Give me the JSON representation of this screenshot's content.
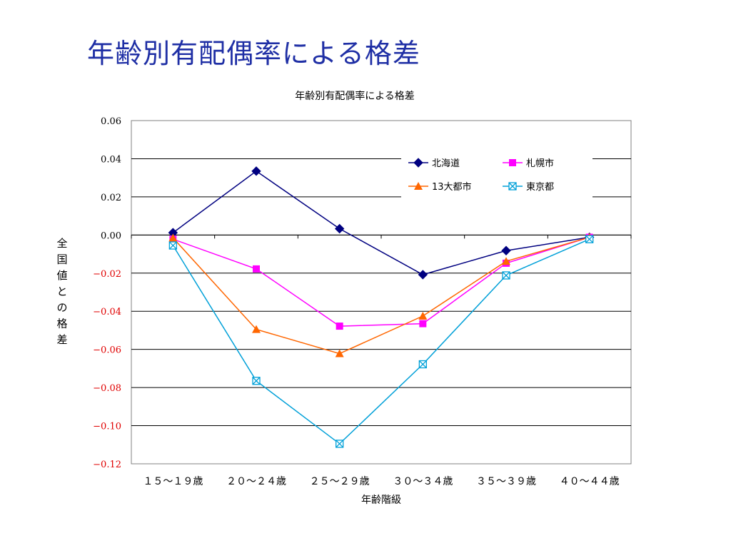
{
  "slide": {
    "title": "年齢別有配偶率による格差"
  },
  "chart_data": {
    "type": "line",
    "title": "年齢別有配偶率による格差",
    "xlabel": "年齢階級",
    "ylabel": "全国値との格差",
    "categories": [
      "１５～１９歳",
      "２０～２４歳",
      "２５～２９歳",
      "３０～３４歳",
      "３５～３９歳",
      "４０～４４歳"
    ],
    "ylim": [
      -0.12,
      0.06
    ],
    "yticks": [
      0.06,
      0.04,
      0.02,
      0.0,
      -0.02,
      -0.04,
      -0.06,
      -0.08,
      -0.1,
      -0.12
    ],
    "ytick_labels": [
      "0.06",
      "0.04",
      "0.02",
      "0.00",
      "−0.02",
      "−0.04",
      "−0.06",
      "−0.08",
      "−0.10",
      "−0.12"
    ],
    "negative_tick_color": "#e00000",
    "grid": true,
    "legend_position": "top-right",
    "series": [
      {
        "name": "北海道",
        "color": "#000080",
        "marker": "diamond",
        "values": [
          0.0012,
          0.0335,
          0.0033,
          -0.0208,
          -0.0082,
          -0.0012
        ]
      },
      {
        "name": "札幌市",
        "color": "#ff00ff",
        "marker": "square",
        "values": [
          -0.0022,
          -0.0178,
          -0.0478,
          -0.0465,
          -0.0148,
          -0.0012
        ]
      },
      {
        "name": "13大都市",
        "color": "#ff6600",
        "marker": "triangle",
        "values": [
          -0.0015,
          -0.0495,
          -0.0622,
          -0.0425,
          -0.0138,
          -0.0012
        ]
      },
      {
        "name": "東京都",
        "color": "#00a0d8",
        "marker": "xsquare",
        "values": [
          -0.0055,
          -0.0765,
          -0.1095,
          -0.0678,
          -0.0212,
          -0.0022
        ]
      }
    ]
  }
}
